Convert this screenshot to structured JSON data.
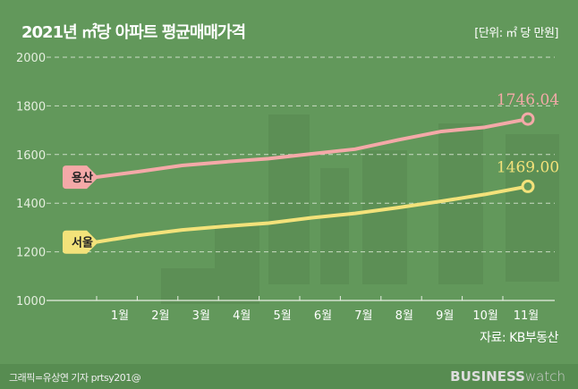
{
  "header": {
    "title": "2021년 ㎡당 아파트 평균매매가격",
    "unit": "[단위: ㎡ 당 만원]"
  },
  "source": "자료: KB부동산",
  "footer": {
    "credit": "그래픽=유상연 기자 prtsy201@",
    "logo_bold": "BUSINESS",
    "logo_light": "watch"
  },
  "chart_data": {
    "type": "line",
    "title": "2021년 ㎡당 아파트 평균매매가격",
    "categories": [
      "1월",
      "2월",
      "3월",
      "4월",
      "5월",
      "6월",
      "7월",
      "8월",
      "9월",
      "10월",
      "11월"
    ],
    "yticks": [
      "1000",
      "1200",
      "1400",
      "1600",
      "1800",
      "2000"
    ],
    "ylim": [
      1000,
      2000
    ],
    "grid": true,
    "series": [
      {
        "name": "용산",
        "color": "#f4a9a8",
        "values": [
          1507,
          1530,
          1555,
          1570,
          1583,
          1603,
          1622,
          1660,
          1695,
          1712,
          1746.04
        ],
        "end_label": "1746.04"
      },
      {
        "name": "서울",
        "color": "#f3e27a",
        "values": [
          1240,
          1268,
          1290,
          1305,
          1318,
          1340,
          1358,
          1382,
          1408,
          1436,
          1469.0
        ],
        "end_label": "1469.00"
      }
    ]
  }
}
